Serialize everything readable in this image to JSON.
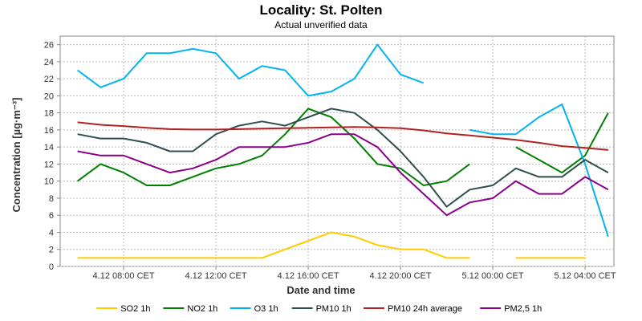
{
  "chart_data": {
    "type": "line",
    "title": "Locality: St. Polten",
    "subtitle": "Actual unverified data",
    "xlabel": "Date and time",
    "ylabel": "Concentration [µg·m⁻³]",
    "ylim": [
      0,
      27
    ],
    "yticks": [
      0,
      2,
      4,
      6,
      8,
      10,
      12,
      14,
      16,
      18,
      20,
      22,
      24,
      26
    ],
    "xlim": [
      5.25,
      29.25
    ],
    "x_hours": [
      6,
      7,
      8,
      9,
      10,
      11,
      12,
      13,
      14,
      15,
      16,
      17,
      18,
      19,
      20,
      21,
      22,
      23,
      24,
      25,
      26,
      27,
      28,
      29
    ],
    "xticks": [
      {
        "hour": 8,
        "label": "4.12 08:00 CET"
      },
      {
        "hour": 12,
        "label": "4.12 12:00 CET"
      },
      {
        "hour": 16,
        "label": "4.12 16:00 CET"
      },
      {
        "hour": 20,
        "label": "4.12 20:00 CET"
      },
      {
        "hour": 24,
        "label": "5.12 00:00 CET"
      },
      {
        "hour": 28,
        "label": "5.12 04:00 CET"
      }
    ],
    "grid": true,
    "legend_position": "bottom",
    "series": [
      {
        "name": "SO2 1h",
        "color": "#ffcc00",
        "values": [
          1,
          1,
          1,
          1,
          1,
          1,
          1,
          1,
          1,
          2,
          3,
          4,
          3.5,
          2.5,
          2,
          2,
          1,
          1,
          null,
          1,
          1,
          1,
          1,
          null
        ]
      },
      {
        "name": "NO2 1h",
        "color": "#008000",
        "values": [
          10,
          12,
          11,
          9.5,
          9.5,
          10.5,
          11.5,
          12,
          13,
          15.5,
          18.5,
          17.5,
          15,
          12,
          11.5,
          9.5,
          10,
          12,
          null,
          14,
          12.5,
          11,
          13,
          18
        ]
      },
      {
        "name": "O3 1h",
        "color": "#00b4f0",
        "values": [
          23,
          21,
          22,
          25,
          25,
          25.5,
          25,
          22,
          23.5,
          23,
          20,
          20.5,
          22,
          26,
          22.5,
          21.5,
          null,
          16,
          15.5,
          15.5,
          17.5,
          19,
          12,
          3.5
        ]
      },
      {
        "name": "PM10 1h",
        "color": "#2f4f4f",
        "values": [
          15.5,
          15,
          15,
          14.5,
          13.5,
          13.5,
          15.5,
          16.5,
          17,
          16.5,
          17.5,
          18.5,
          18,
          16,
          13.5,
          10.5,
          7,
          9,
          9.5,
          11.5,
          10.5,
          10.5,
          12.5,
          11
        ]
      },
      {
        "name": "PM10 24h average",
        "color": "#b22222",
        "values": [
          16.9,
          16.6,
          16.45,
          16.25,
          16.1,
          16.05,
          16.05,
          16.1,
          16.15,
          16.2,
          16.25,
          16.3,
          16.35,
          16.3,
          16.2,
          15.95,
          15.6,
          15.35,
          15.1,
          14.85,
          14.5,
          14.1,
          13.9,
          13.65
        ]
      },
      {
        "name": "PM2,5 1h",
        "color": "#8b008b",
        "values": [
          13.5,
          13,
          13,
          12,
          11,
          11.5,
          12.5,
          14,
          14,
          14,
          14.5,
          15.5,
          15.5,
          14,
          11,
          8.5,
          6,
          7.5,
          8,
          10,
          8.5,
          8.5,
          10.5,
          9
        ]
      }
    ]
  }
}
